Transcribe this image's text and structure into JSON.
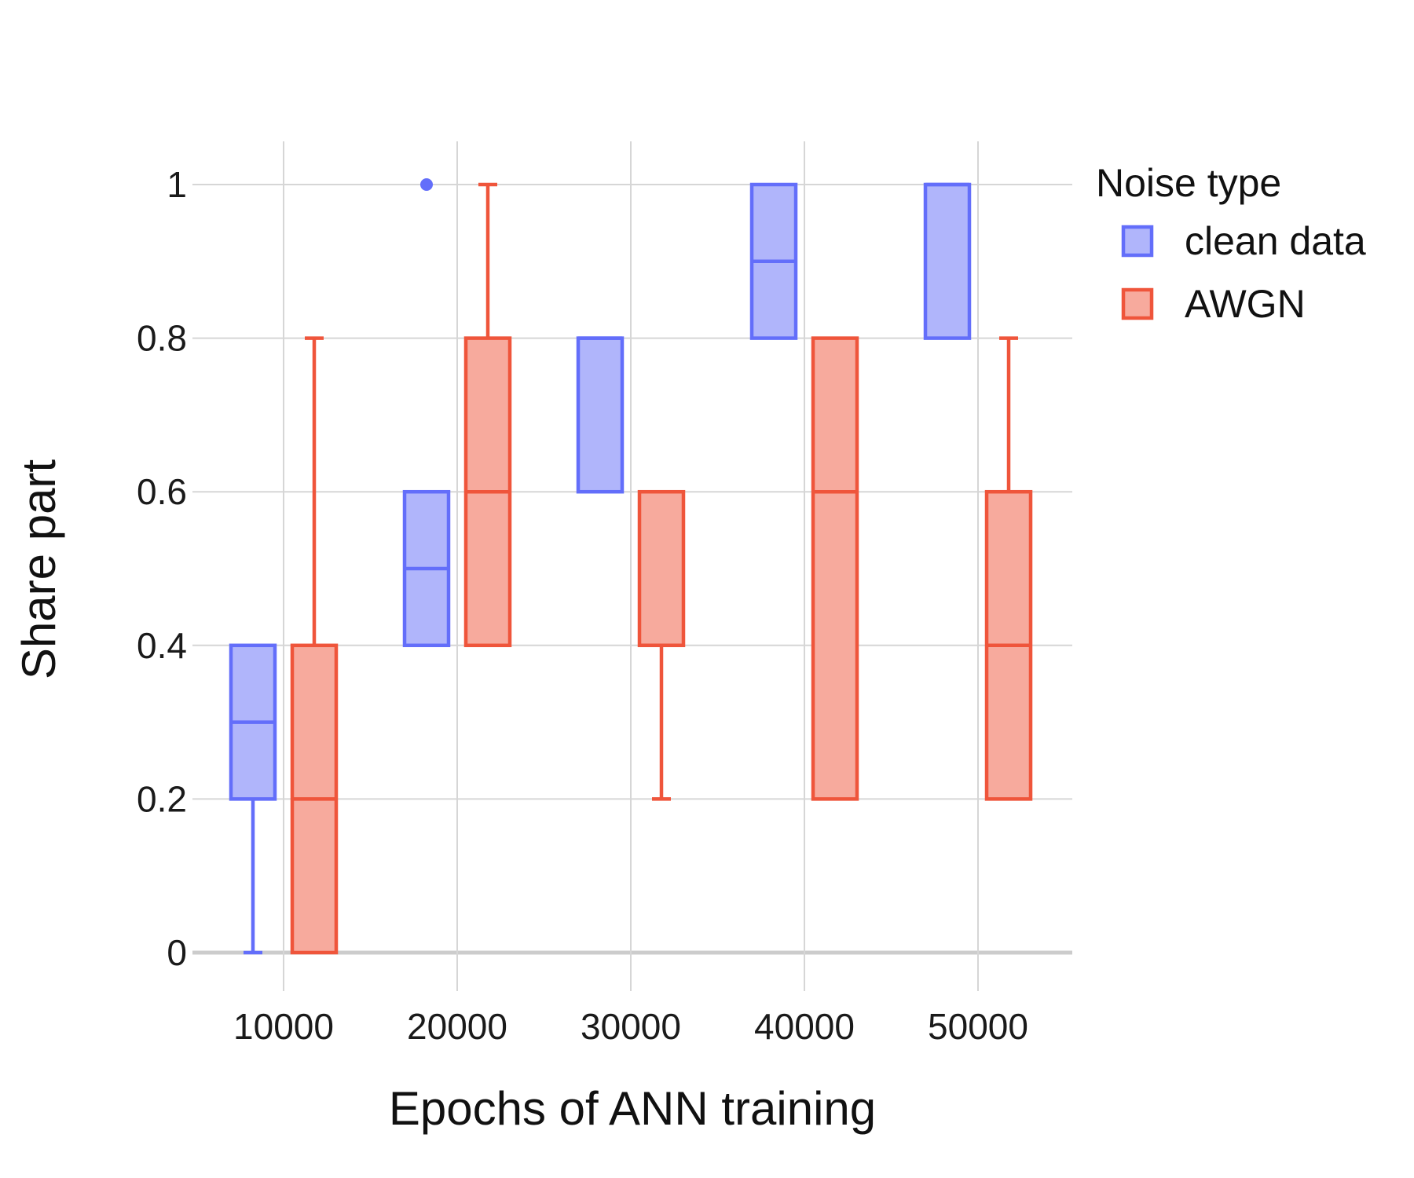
{
  "chart_data": {
    "type": "box",
    "xlabel": "Epochs of ANN training",
    "ylabel": "Share part",
    "categories": [
      "10000",
      "20000",
      "30000",
      "40000",
      "50000"
    ],
    "ylim": [
      -0.05,
      1.05
    ],
    "yticks": [
      {
        "value": 0,
        "label": "0"
      },
      {
        "value": 0.2,
        "label": "0.2"
      },
      {
        "value": 0.4,
        "label": "0.4"
      },
      {
        "value": 0.6,
        "label": "0.6"
      },
      {
        "value": 0.8,
        "label": "0.8"
      },
      {
        "value": 1,
        "label": "1"
      }
    ],
    "grid": true,
    "legend": {
      "title": "Noise type",
      "placement": "right"
    },
    "series": [
      {
        "name": "clean data",
        "stroke": "#636efa",
        "fill": "#b0b5fb",
        "boxes": [
          {
            "category": "10000",
            "min": 0,
            "q1": 0.2,
            "median": 0.3,
            "q3": 0.4,
            "max": 0.4,
            "outliers": []
          },
          {
            "category": "20000",
            "min": 0.4,
            "q1": 0.4,
            "median": 0.5,
            "q3": 0.6,
            "max": 0.6,
            "outliers": [
              1
            ]
          },
          {
            "category": "30000",
            "min": 0.6,
            "q1": 0.6,
            "median": 0.8,
            "q3": 0.8,
            "max": 0.8,
            "outliers": []
          },
          {
            "category": "40000",
            "min": 0.8,
            "q1": 0.8,
            "median": 0.9,
            "q3": 1,
            "max": 1,
            "outliers": []
          },
          {
            "category": "50000",
            "min": 0.8,
            "q1": 0.8,
            "median": 1,
            "q3": 1,
            "max": 1,
            "outliers": []
          }
        ]
      },
      {
        "name": "AWGN",
        "stroke": "#ef553b",
        "fill": "#f7aa9d",
        "boxes": [
          {
            "category": "10000",
            "min": 0,
            "q1": 0,
            "median": 0.2,
            "q3": 0.4,
            "max": 0.8,
            "outliers": []
          },
          {
            "category": "20000",
            "min": 0.4,
            "q1": 0.4,
            "median": 0.6,
            "q3": 0.8,
            "max": 1,
            "outliers": []
          },
          {
            "category": "30000",
            "min": 0.2,
            "q1": 0.4,
            "median": 0.4,
            "q3": 0.6,
            "max": 0.6,
            "outliers": []
          },
          {
            "category": "40000",
            "min": 0.2,
            "q1": 0.2,
            "median": 0.6,
            "q3": 0.8,
            "max": 0.8,
            "outliers": []
          },
          {
            "category": "50000",
            "min": 0.2,
            "q1": 0.2,
            "median": 0.4,
            "q3": 0.6,
            "max": 0.8,
            "outliers": []
          }
        ]
      }
    ]
  }
}
